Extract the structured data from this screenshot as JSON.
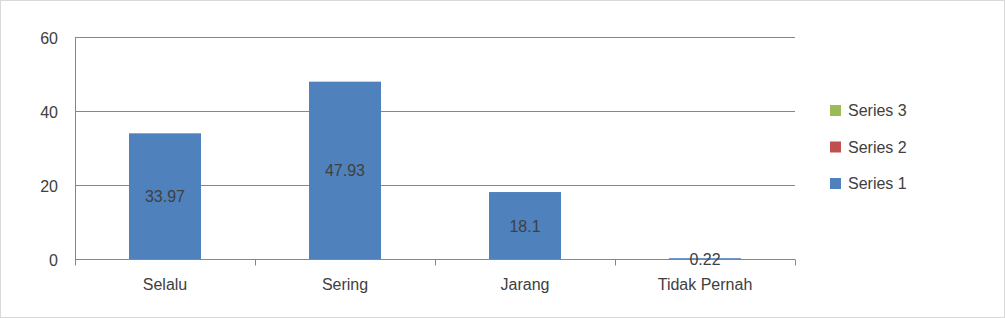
{
  "chart_data": {
    "type": "bar",
    "categories": [
      "Selalu",
      "Sering",
      "Jarang",
      "Tidak Pernah"
    ],
    "series": [
      {
        "name": "Series 1",
        "color": "#4f81bd",
        "values": [
          33.97,
          47.93,
          18.1,
          0.22
        ]
      },
      {
        "name": "Series 2",
        "color": "#c0504d",
        "values": [
          null,
          null,
          null,
          null
        ]
      },
      {
        "name": "Series 3",
        "color": "#9bbb59",
        "values": [
          null,
          null,
          null,
          null
        ]
      }
    ],
    "ylim": [
      0,
      60
    ],
    "yticks": [
      0,
      20,
      40,
      60
    ],
    "grid": true,
    "legend": "right",
    "data_labels": true
  }
}
